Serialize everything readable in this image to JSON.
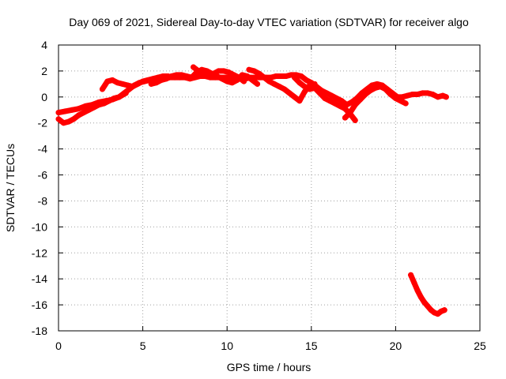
{
  "chart_data": {
    "type": "scatter",
    "title": "Day 069 of 2021, Sidereal Day-to-day VTEC variation (SDTVAR) for receiver algo",
    "xlabel": "GPS time / hours",
    "ylabel": "SDTVAR / TECUs",
    "xlim": [
      0,
      25
    ],
    "ylim": [
      -18,
      4
    ],
    "xticks": [
      0,
      5,
      10,
      15,
      20,
      25
    ],
    "yticks": [
      4,
      2,
      0,
      -2,
      -4,
      -6,
      -8,
      -10,
      -12,
      -14,
      -16,
      -18
    ],
    "grid": true,
    "legend": "none",
    "series": [
      {
        "name": "main-trace",
        "color": "#ff0000",
        "x": [
          0.0,
          0.3,
          0.6,
          0.9,
          1.2,
          1.5,
          1.8,
          2.1,
          2.4,
          2.7,
          3.0,
          3.3,
          3.6,
          3.9,
          4.2,
          4.5,
          4.8,
          5.1,
          5.4,
          5.7,
          6.0,
          6.3,
          6.6,
          6.9,
          7.2,
          7.5,
          7.8,
          8.1,
          8.4,
          8.7,
          9.0,
          9.3,
          9.6,
          9.9,
          10.2,
          10.5,
          10.8,
          11.1,
          11.4,
          11.7,
          12.0,
          12.3,
          12.6,
          12.9,
          13.2,
          13.5,
          13.8,
          14.1,
          14.4,
          14.7,
          15.0,
          15.3,
          15.6,
          15.9,
          16.2,
          16.5,
          16.8,
          17.1,
          17.4,
          17.7,
          18.0,
          18.3,
          18.6,
          18.9,
          19.2,
          19.5,
          19.8,
          20.1,
          20.4,
          20.7,
          21.0,
          21.3,
          21.6,
          21.9,
          22.2,
          22.5,
          22.8,
          23.0
        ],
        "y": [
          -1.7,
          -2.0,
          -1.9,
          -1.7,
          -1.4,
          -1.2,
          -1.0,
          -0.8,
          -0.6,
          -0.5,
          -0.3,
          -0.1,
          0.0,
          0.3,
          0.6,
          0.9,
          1.1,
          1.2,
          1.3,
          1.3,
          1.4,
          1.4,
          1.5,
          1.5,
          1.5,
          1.5,
          1.4,
          1.5,
          1.6,
          1.6,
          1.5,
          1.5,
          1.5,
          1.5,
          1.5,
          1.4,
          1.4,
          1.4,
          1.5,
          1.5,
          1.5,
          1.5,
          1.5,
          1.6,
          1.6,
          1.6,
          1.7,
          1.7,
          1.6,
          1.3,
          1.1,
          0.8,
          0.5,
          0.3,
          0.1,
          -0.1,
          -0.3,
          -0.6,
          -0.4,
          -0.1,
          0.3,
          0.6,
          0.9,
          1.0,
          0.9,
          0.6,
          0.3,
          0.0,
          0.0,
          0.1,
          0.2,
          0.2,
          0.3,
          0.3,
          0.2,
          0.0,
          0.1,
          0.0
        ]
      },
      {
        "name": "low-arc-1",
        "color": "#ff0000",
        "x": [
          0.0,
          0.4,
          0.8,
          1.2,
          1.6,
          2.0,
          2.4,
          2.8,
          3.2,
          3.6,
          4.0
        ],
        "y": [
          -1.2,
          -1.1,
          -1.0,
          -0.9,
          -0.7,
          -0.6,
          -0.4,
          -0.3,
          -0.2,
          0.0,
          0.3
        ]
      },
      {
        "name": "mid-arc-2",
        "color": "#ff0000",
        "x": [
          2.6,
          2.9,
          3.2,
          3.5,
          3.8,
          4.1,
          4.4,
          4.7,
          5.0,
          5.3,
          5.6,
          5.9,
          6.2,
          6.5
        ],
        "y": [
          0.6,
          1.2,
          1.3,
          1.1,
          1.0,
          0.9,
          0.8,
          1.0,
          1.2,
          1.3,
          1.4,
          1.5,
          1.6,
          1.6
        ]
      },
      {
        "name": "arc-3",
        "color": "#ff0000",
        "x": [
          5.5,
          5.8,
          6.1,
          6.4,
          6.7,
          7.0,
          7.3,
          7.6,
          7.9,
          8.2,
          8.5,
          8.8,
          9.1,
          9.4,
          9.7,
          10.0,
          10.3,
          10.6,
          10.9,
          11.2,
          11.5,
          11.8
        ],
        "y": [
          1.0,
          1.1,
          1.3,
          1.4,
          1.6,
          1.7,
          1.7,
          1.6,
          1.5,
          1.9,
          2.1,
          2.0,
          1.8,
          1.6,
          1.4,
          1.2,
          1.1,
          1.3,
          1.7,
          1.6,
          1.3,
          1.0
        ]
      },
      {
        "name": "arc-4",
        "color": "#ff0000",
        "x": [
          8.0,
          8.3,
          8.6,
          8.9,
          9.2,
          9.5,
          9.8,
          10.1,
          10.4,
          10.7,
          11.0
        ],
        "y": [
          2.3,
          2.0,
          1.8,
          1.7,
          1.8,
          2.0,
          2.0,
          1.9,
          1.7,
          1.5,
          1.2
        ]
      },
      {
        "name": "arc-5",
        "color": "#ff0000",
        "x": [
          11.3,
          11.6,
          11.9,
          12.2,
          12.5,
          12.8,
          13.1,
          13.4,
          13.7,
          14.0,
          14.3,
          14.6,
          14.9,
          15.2
        ],
        "y": [
          2.1,
          2.0,
          1.8,
          1.5,
          1.2,
          1.0,
          0.8,
          0.6,
          0.3,
          0.0,
          -0.3,
          0.4,
          0.9,
          1.0
        ]
      },
      {
        "name": "arc-6",
        "color": "#ff0000",
        "x": [
          14.0,
          14.3,
          14.6,
          14.9,
          15.2,
          15.5,
          15.8,
          16.1,
          16.4,
          16.7,
          17.0,
          17.3,
          17.6
        ],
        "y": [
          1.5,
          1.1,
          0.8,
          0.6,
          0.7,
          0.3,
          -0.1,
          -0.3,
          -0.5,
          -0.7,
          -0.9,
          -1.3,
          -1.8
        ]
      },
      {
        "name": "arc-7",
        "color": "#ff0000",
        "x": [
          17.0,
          17.3,
          17.6,
          17.9,
          18.2,
          18.5,
          18.8,
          19.1,
          19.4,
          19.7,
          20.0,
          20.3,
          20.6
        ],
        "y": [
          -1.6,
          -1.2,
          -0.6,
          -0.2,
          0.2,
          0.5,
          0.7,
          0.8,
          0.6,
          0.2,
          -0.1,
          -0.3,
          -0.5
        ]
      },
      {
        "name": "low-outlier-arc",
        "color": "#ff0000",
        "x": [
          20.9,
          21.1,
          21.3,
          21.5,
          21.7,
          21.9,
          22.1,
          22.3,
          22.5,
          22.7,
          22.9
        ],
        "y": [
          -13.7,
          -14.3,
          -14.9,
          -15.4,
          -15.8,
          -16.1,
          -16.4,
          -16.6,
          -16.7,
          -16.5,
          -16.4
        ]
      }
    ]
  }
}
